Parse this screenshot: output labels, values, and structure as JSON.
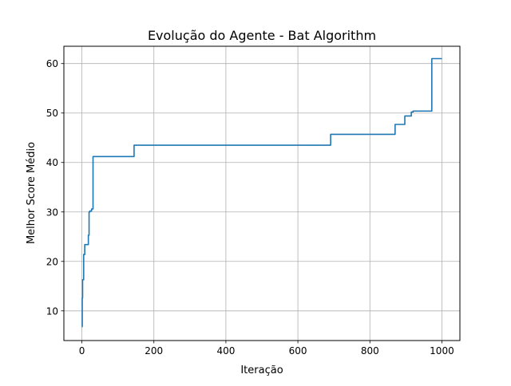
{
  "chart_data": {
    "type": "line",
    "title": "Evolução do Agente - Bat Algorithm",
    "xlabel": "Iteração",
    "ylabel": "Melhor Score Médio",
    "xlim": [
      -50,
      1050
    ],
    "ylim": [
      4.0,
      63.5
    ],
    "x_ticks": [
      0,
      200,
      400,
      600,
      800,
      1000
    ],
    "y_ticks": [
      10,
      20,
      30,
      40,
      50,
      60
    ],
    "x_tick_labels": [
      "0",
      "200",
      "400",
      "600",
      "800",
      "1000"
    ],
    "y_tick_labels": [
      "10",
      "20",
      "30",
      "40",
      "50",
      "60"
    ],
    "grid": true,
    "legend": "none",
    "series": [
      {
        "color": "#1f77b4",
        "step": "post",
        "x": [
          0,
          1,
          2,
          5,
          8,
          18,
          20,
          22,
          27,
          31,
          143,
          145,
          689,
          691,
          868,
          870,
          895,
          897,
          913,
          915,
          918,
          920,
          970,
          972,
          1000
        ],
        "y": [
          6.8,
          12.6,
          16.3,
          21.4,
          23.4,
          25.3,
          30.0,
          30.2,
          30.6,
          41.2,
          41.2,
          43.5,
          43.5,
          45.7,
          45.7,
          47.7,
          47.7,
          49.4,
          49.4,
          50.2,
          50.2,
          50.4,
          50.4,
          61.0,
          61.0
        ]
      }
    ]
  }
}
